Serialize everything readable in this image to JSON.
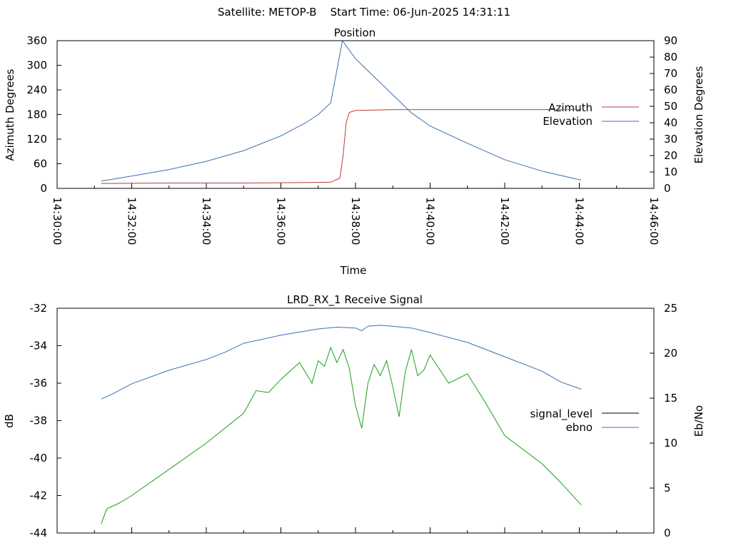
{
  "page_title": "Satellite: METOP-B    Start Time: 06-Jun-2025 14:31:11",
  "chart_data": [
    {
      "type": "line",
      "title": "Position",
      "xlabel": "Time",
      "ylabel": "Azimuth Degrees",
      "y2label": "Elevation Degrees",
      "x_ticks": [
        "14:30:00",
        "14:32:00",
        "14:34:00",
        "14:36:00",
        "14:38:00",
        "14:40:00",
        "14:42:00",
        "14:44:00",
        "14:46:00"
      ],
      "xlim": [
        "14:30:00",
        "14:46:00"
      ],
      "ylim": [
        0,
        360
      ],
      "y_ticks": [
        0,
        60,
        120,
        180,
        240,
        300,
        360
      ],
      "y2lim": [
        0,
        90
      ],
      "y2_ticks": [
        0,
        10,
        20,
        30,
        40,
        50,
        60,
        70,
        80,
        90
      ],
      "legend": "right",
      "grid": false,
      "series": [
        {
          "name": "Azimuth",
          "axis": "y",
          "color": "#c0393b",
          "x": [
            "14:31:11",
            "14:33:00",
            "14:35:00",
            "14:36:30",
            "14:37:20",
            "14:37:35",
            "14:37:40",
            "14:37:45",
            "14:37:50",
            "14:38:00",
            "14:38:30",
            "14:39:00",
            "14:40:00",
            "14:42:00",
            "14:44:03"
          ],
          "y": [
            12,
            13,
            13,
            14,
            15,
            25,
            80,
            160,
            185,
            190,
            191,
            192,
            192,
            192,
            192
          ]
        },
        {
          "name": "Elevation",
          "axis": "y2",
          "color": "#3c6fb0",
          "x": [
            "14:31:11",
            "14:32:00",
            "14:33:00",
            "14:34:00",
            "14:35:00",
            "14:36:00",
            "14:36:40",
            "14:37:00",
            "14:37:20",
            "14:37:39",
            "14:38:00",
            "14:38:30",
            "14:39:00",
            "14:39:30",
            "14:40:00",
            "14:41:00",
            "14:42:00",
            "14:43:00",
            "14:44:03"
          ],
          "y": [
            4.5,
            7.5,
            11.5,
            16.5,
            23,
            32,
            40,
            45,
            52,
            90,
            79,
            68,
            57,
            46,
            38,
            27.5,
            17.5,
            10.5,
            5
          ]
        }
      ]
    },
    {
      "type": "line",
      "title": "LRD_RX_1 Receive Signal",
      "ylabel": "dB",
      "y2label": "Eb/No",
      "xlim": [
        "14:30:00",
        "14:46:00"
      ],
      "ylim": [
        -44,
        -32
      ],
      "y_ticks": [
        -44,
        -42,
        -40,
        -38,
        -36,
        -34,
        -32
      ],
      "y2lim": [
        0,
        25
      ],
      "y2_ticks": [
        0,
        5,
        10,
        15,
        20,
        25
      ],
      "legend": "right",
      "grid": false,
      "series": [
        {
          "name": "signal_level",
          "axis": "y",
          "color": "#1aa01a",
          "x": [
            "14:31:11",
            "14:31:20",
            "14:31:40",
            "14:32:00",
            "14:33:00",
            "14:34:00",
            "14:35:00",
            "14:35:20",
            "14:35:40",
            "14:36:00",
            "14:36:30",
            "14:36:50",
            "14:37:00",
            "14:37:10",
            "14:37:20",
            "14:37:30",
            "14:37:40",
            "14:37:50",
            "14:38:00",
            "14:38:10",
            "14:38:20",
            "14:38:30",
            "14:38:40",
            "14:38:50",
            "14:39:00",
            "14:39:10",
            "14:39:20",
            "14:39:30",
            "14:39:40",
            "14:39:50",
            "14:40:00",
            "14:40:30",
            "14:41:00",
            "14:41:30",
            "14:42:00",
            "14:43:00",
            "14:43:30",
            "14:44:03"
          ],
          "y": [
            -43.5,
            -42.7,
            -42.4,
            -42.0,
            -40.6,
            -39.2,
            -37.6,
            -36.4,
            -36.5,
            -35.8,
            -34.9,
            -36.0,
            -34.8,
            -35.1,
            -34.1,
            -34.9,
            -34.2,
            -35.2,
            -37.2,
            -38.4,
            -36.0,
            -35.0,
            -35.6,
            -34.8,
            -36.2,
            -37.8,
            -35.4,
            -34.2,
            -35.6,
            -35.3,
            -34.5,
            -36.0,
            -35.5,
            -37.1,
            -38.8,
            -40.3,
            -41.3,
            -42.5
          ]
        },
        {
          "name": "ebno",
          "axis": "y2",
          "color": "#3c6fb0",
          "x": [
            "14:31:11",
            "14:31:30",
            "14:32:00",
            "14:33:00",
            "14:34:00",
            "14:34:30",
            "14:35:00",
            "14:36:00",
            "14:37:00",
            "14:37:30",
            "14:38:00",
            "14:38:10",
            "14:38:20",
            "14:38:40",
            "14:39:00",
            "14:39:30",
            "14:40:00",
            "14:41:00",
            "14:42:00",
            "14:43:00",
            "14:43:30",
            "14:44:03"
          ],
          "y": [
            14.9,
            15.5,
            16.6,
            18.1,
            19.3,
            20.1,
            21.1,
            22.0,
            22.7,
            22.9,
            22.8,
            22.5,
            23.0,
            23.1,
            23.0,
            22.8,
            22.3,
            21.2,
            19.6,
            18.0,
            16.8,
            16.0
          ]
        }
      ]
    }
  ]
}
